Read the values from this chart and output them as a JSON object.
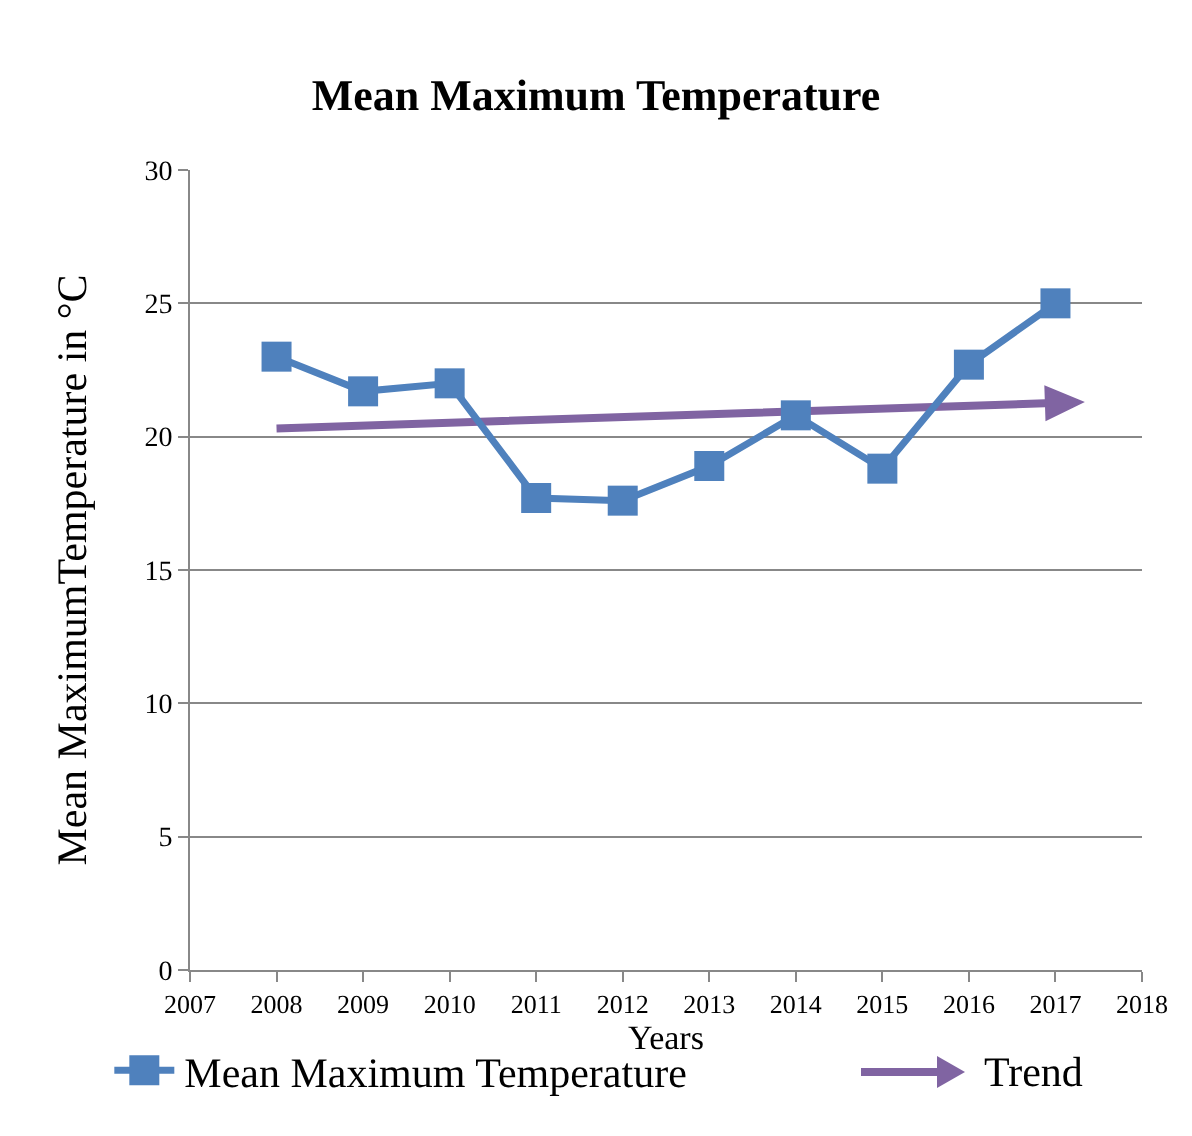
{
  "chart_data": {
    "type": "line",
    "title": "Mean Maximum Temperature",
    "xlabel": "Years",
    "ylabel": "Mean MaximumTemperature in °C",
    "x": [
      2008,
      2009,
      2010,
      2011,
      2012,
      2013,
      2014,
      2015,
      2016,
      2017
    ],
    "series": [
      {
        "name": "Mean Maximum Temperature",
        "color": "#4f81bd",
        "marker": "square",
        "values": [
          23.0,
          21.7,
          22.0,
          17.7,
          17.6,
          18.9,
          20.8,
          18.8,
          22.7,
          25.0
        ]
      }
    ],
    "annotations": [
      "Trend"
    ],
    "xlim": [
      2007,
      2018
    ],
    "xticks": [
      2007,
      2008,
      2009,
      2010,
      2011,
      2012,
      2013,
      2014,
      2015,
      2016,
      2017,
      2018
    ],
    "ylim": [
      0,
      30
    ],
    "yticks": [
      0,
      5,
      10,
      15,
      20,
      25,
      30
    ],
    "grid": "y",
    "legend": "bottom",
    "line_style": "solid"
  }
}
